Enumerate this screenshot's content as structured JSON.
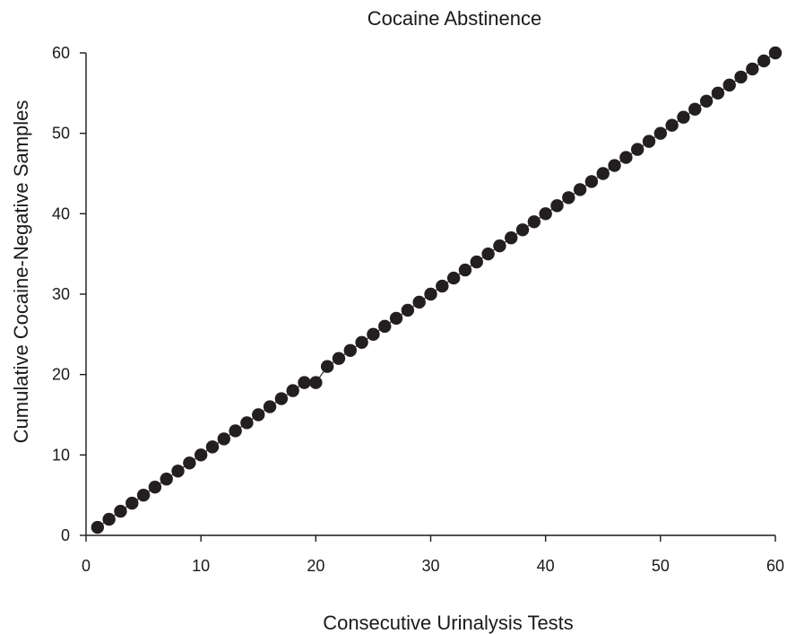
{
  "chart_data": {
    "type": "line",
    "title": "Cocaine Abstinence",
    "xlabel": "Consecutive Urinalysis Tests",
    "ylabel": "Cumulative Cocaine-Negative Samples",
    "xlim": [
      0,
      60
    ],
    "ylim": [
      0,
      60
    ],
    "xticks": [
      "0",
      "10",
      "20",
      "30",
      "40",
      "50",
      "60"
    ],
    "yticks": [
      "0",
      "10",
      "20",
      "30",
      "40",
      "50",
      "60"
    ],
    "grid": false,
    "legend": "none",
    "marker_color": "#231f20",
    "series": [
      {
        "x": [
          1,
          2,
          3,
          4,
          5,
          6,
          7,
          8,
          9,
          10,
          11,
          12,
          13,
          14,
          15,
          16,
          17,
          18,
          19,
          20,
          21,
          22,
          23,
          24,
          25,
          26,
          27,
          28,
          29,
          30,
          31,
          32,
          33,
          34,
          35,
          36,
          37,
          38,
          39,
          40,
          41,
          42,
          43,
          44,
          45,
          46,
          47,
          48,
          49,
          50,
          51,
          52,
          53,
          54,
          55,
          56,
          57,
          58,
          59,
          60
        ],
        "y": [
          1,
          2,
          3,
          4,
          5,
          6,
          7,
          8,
          9,
          10,
          11,
          12,
          13,
          14,
          15,
          16,
          17,
          18,
          19,
          19,
          21,
          22,
          23,
          24,
          25,
          26,
          27,
          28,
          29,
          30,
          31,
          32,
          33,
          34,
          35,
          36,
          37,
          38,
          39,
          40,
          41,
          42,
          43,
          44,
          45,
          46,
          47,
          48,
          49,
          50,
          51,
          52,
          53,
          54,
          55,
          56,
          57,
          58,
          59,
          60
        ]
      }
    ]
  }
}
